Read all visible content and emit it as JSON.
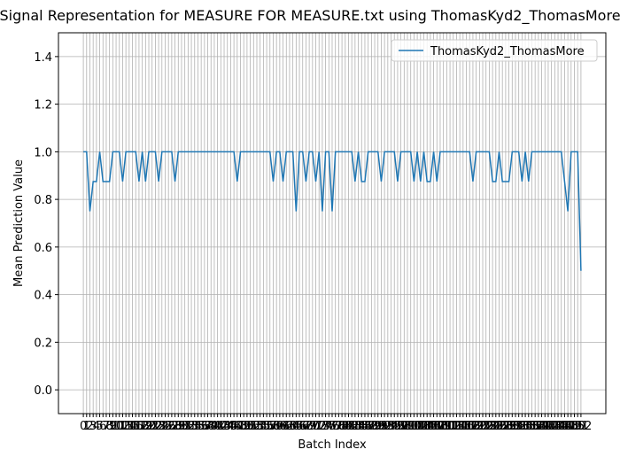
{
  "chart_data": {
    "type": "line",
    "title": "Signal Representation for MEASURE FOR MEASURE.txt using ThomasKyd2_ThomasMore",
    "x_label": "Batch Index",
    "y_label": "Mean Prediction Value",
    "x": [
      0,
      1,
      2,
      3,
      4,
      5,
      6,
      7,
      8,
      9,
      10,
      11,
      12,
      13,
      14,
      15,
      16,
      17,
      18,
      19,
      20,
      21,
      22,
      23,
      24,
      25,
      26,
      27,
      28,
      29,
      30,
      31,
      32,
      33,
      34,
      35,
      36,
      37,
      38,
      39,
      40,
      41,
      42,
      43,
      44,
      45,
      46,
      47,
      48,
      49,
      50,
      51,
      52,
      53,
      54,
      55,
      56,
      57,
      58,
      59,
      60,
      61,
      62,
      63,
      64,
      65,
      66,
      67,
      68,
      69,
      70,
      71,
      72,
      73,
      74,
      75,
      76,
      77,
      78,
      79,
      80,
      81,
      82,
      83,
      84,
      85,
      86,
      87,
      88,
      89,
      90,
      91,
      92,
      93,
      94,
      95,
      96,
      97,
      98,
      99,
      100,
      101,
      102,
      103,
      104,
      105,
      106,
      107,
      108,
      109,
      110,
      111,
      112,
      113,
      114,
      115,
      116,
      117,
      118,
      119,
      120,
      121,
      122,
      123,
      124,
      125,
      126,
      127,
      128,
      129,
      130,
      131,
      132,
      133,
      134,
      135,
      136,
      137,
      138,
      139,
      140,
      141,
      142,
      143,
      144,
      145,
      146,
      147,
      148,
      149,
      150,
      151,
      152
    ],
    "series": [
      {
        "name": "ThomasKyd2_ThomasMore",
        "color": "#1f77b4",
        "values": [
          1,
          1,
          0.75,
          0.875,
          0.875,
          1,
          0.875,
          0.875,
          0.875,
          1,
          1,
          1,
          0.875,
          1,
          1,
          1,
          1,
          0.875,
          1,
          0.875,
          1,
          1,
          1,
          0.875,
          1,
          1,
          1,
          1,
          0.875,
          1,
          1,
          1,
          1,
          1,
          1,
          1,
          1,
          1,
          1,
          1,
          1,
          1,
          1,
          1,
          1,
          1,
          1,
          0.875,
          1,
          1,
          1,
          1,
          1,
          1,
          1,
          1,
          1,
          1,
          0.875,
          1,
          1,
          0.875,
          1,
          1,
          1,
          0.75,
          1,
          1,
          0.875,
          1,
          1,
          0.875,
          1,
          0.75,
          1,
          1,
          0.75,
          1,
          1,
          1,
          1,
          1,
          1,
          0.875,
          1,
          0.875,
          0.875,
          1,
          1,
          1,
          1,
          0.875,
          1,
          1,
          1,
          1,
          0.875,
          1,
          1,
          1,
          1,
          0.875,
          1,
          0.875,
          1,
          0.875,
          0.875,
          1,
          0.875,
          1,
          1,
          1,
          1,
          1,
          1,
          1,
          1,
          1,
          1,
          0.875,
          1,
          1,
          1,
          1,
          1,
          0.875,
          0.875,
          1,
          0.875,
          0.875,
          0.875,
          1,
          1,
          1,
          0.875,
          1,
          0.875,
          1,
          1,
          1,
          1,
          1,
          1,
          1,
          1,
          1,
          1,
          0.875,
          0.75,
          1,
          1,
          1,
          0.5
        ]
      }
    ],
    "xlim": [
      -7.6,
      159.6
    ],
    "xticks": [
      0,
      1,
      2,
      3,
      4,
      5,
      6,
      7,
      8,
      9,
      10,
      11,
      12,
      13,
      14,
      15,
      16,
      17,
      18,
      19,
      20,
      21,
      22,
      23,
      24,
      25,
      26,
      27,
      28,
      29,
      30,
      31,
      32,
      33,
      34,
      35,
      36,
      37,
      38,
      39,
      40,
      41,
      42,
      43,
      44,
      45,
      46,
      47,
      48,
      49,
      50,
      51,
      52,
      53,
      54,
      55,
      56,
      57,
      58,
      59,
      60,
      61,
      62,
      63,
      64,
      65,
      66,
      67,
      68,
      69,
      70,
      71,
      72,
      73,
      74,
      75,
      76,
      77,
      78,
      79,
      80,
      81,
      82,
      83,
      84,
      85,
      86,
      87,
      88,
      89,
      90,
      91,
      92,
      93,
      94,
      95,
      96,
      97,
      98,
      99,
      100,
      101,
      102,
      103,
      104,
      105,
      106,
      107,
      108,
      109,
      110,
      111,
      112,
      113,
      114,
      115,
      116,
      117,
      118,
      119,
      120,
      121,
      122,
      123,
      124,
      125,
      126,
      127,
      128,
      129,
      130,
      131,
      132,
      133,
      134,
      135,
      136,
      137,
      138,
      139,
      140,
      141,
      142,
      143,
      144,
      145,
      146,
      147,
      148,
      149,
      150,
      151,
      152
    ],
    "ylim": [
      -0.1,
      1.5
    ],
    "yticks": [
      {
        "value": 0,
        "label": "0.0"
      },
      {
        "value": 0.2,
        "label": "0.2"
      },
      {
        "value": 0.4,
        "label": "0.4"
      },
      {
        "value": 0.6,
        "label": "0.6"
      },
      {
        "value": 0.8,
        "label": "0.8"
      },
      {
        "value": 1,
        "label": "1.0"
      },
      {
        "value": 1.2,
        "label": "1.2"
      },
      {
        "value": 1.4,
        "label": "1.4"
      }
    ],
    "grid": true,
    "legend": "upper right"
  }
}
